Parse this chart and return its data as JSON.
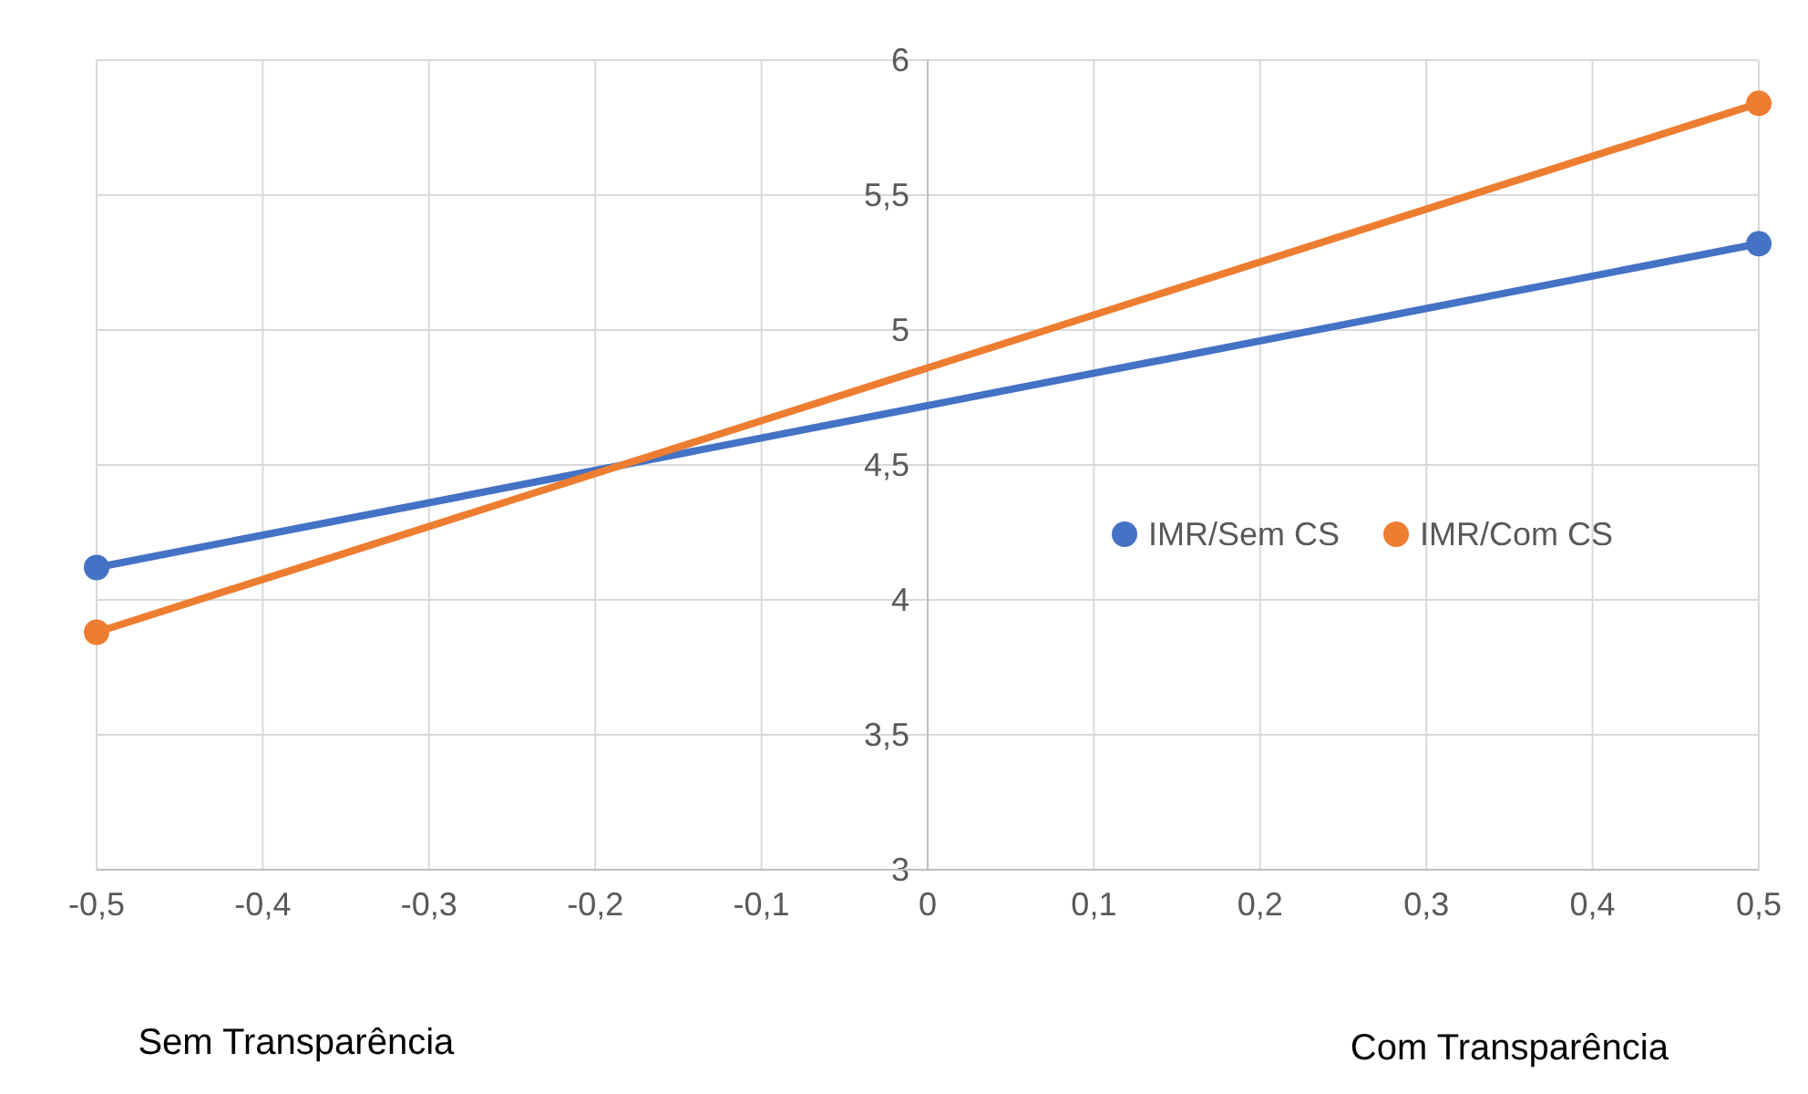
{
  "chart_data": {
    "type": "line",
    "x": [
      -0.5,
      0.5
    ],
    "series": [
      {
        "name": "IMR/Sem CS",
        "color": "#4472c4",
        "values": [
          4.12,
          5.32
        ]
      },
      {
        "name": "IMR/Com CS",
        "color": "#ed7d31",
        "values": [
          3.88,
          5.84
        ]
      }
    ],
    "xlim": [
      -0.5,
      0.5
    ],
    "ylim": [
      3,
      6
    ],
    "xticks": [
      {
        "value": -0.5,
        "label": "-0,5"
      },
      {
        "value": -0.4,
        "label": "-0,4"
      },
      {
        "value": -0.3,
        "label": "-0,3"
      },
      {
        "value": -0.2,
        "label": "-0,2"
      },
      {
        "value": -0.1,
        "label": "-0,1"
      },
      0,
      {
        "value": 0.1,
        "label": "0,1"
      },
      {
        "value": 0.2,
        "label": "0,2"
      },
      {
        "value": 0.3,
        "label": "0,3"
      },
      {
        "value": 0.4,
        "label": "0,4"
      },
      {
        "value": 0.5,
        "label": "0,5"
      }
    ],
    "yticks": [
      3,
      {
        "value": 3.5,
        "label": "3,5"
      },
      4,
      {
        "value": 4.5,
        "label": "4,5"
      },
      5,
      {
        "value": 5.5,
        "label": "5,5"
      },
      6
    ],
    "annotations": [
      "Sem Transparência",
      "Com Transparência"
    ],
    "grid": true,
    "legend": "right",
    "marker": "circle",
    "line_style": "solid"
  }
}
